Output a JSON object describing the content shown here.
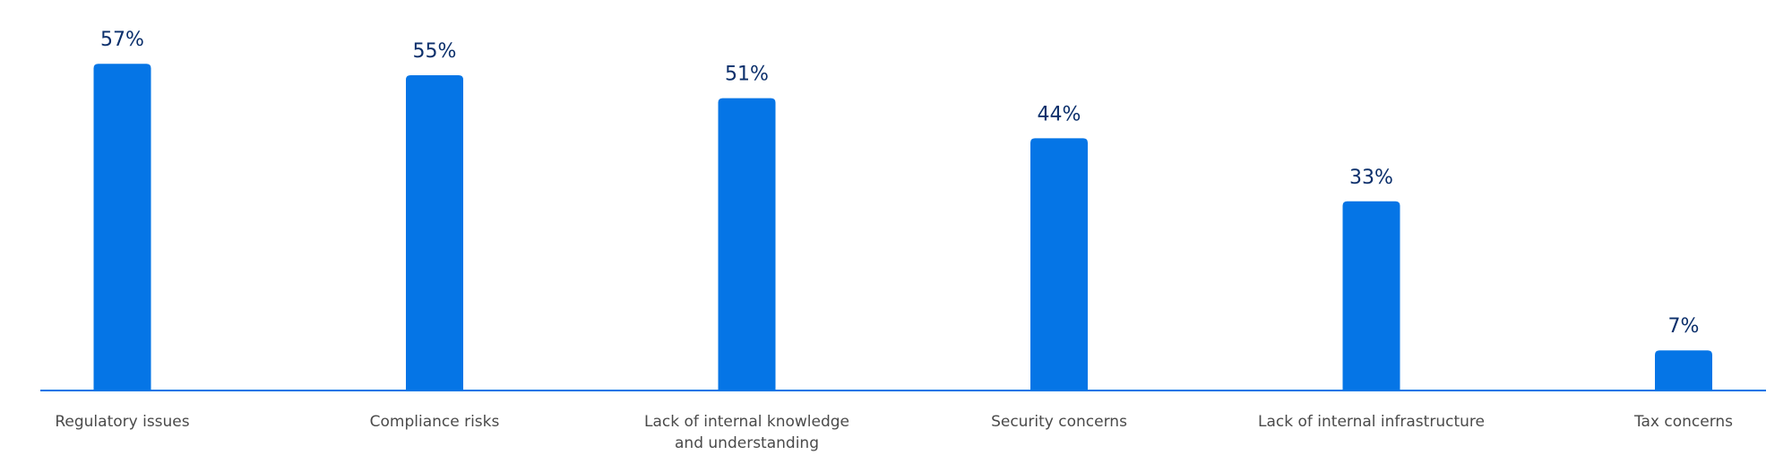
{
  "chart_data": {
    "type": "bar",
    "categories": [
      "Regulatory issues",
      "Compliance risks",
      "Lack of internal knowledge\nand understanding",
      "Security concerns",
      "Lack of internal infrastructure",
      "Tax concerns"
    ],
    "values": [
      57,
      55,
      51,
      44,
      33,
      7
    ],
    "value_labels": [
      "57%",
      "55%",
      "51%",
      "44%",
      "33%",
      "7%"
    ],
    "color": "#0575e6"
  }
}
